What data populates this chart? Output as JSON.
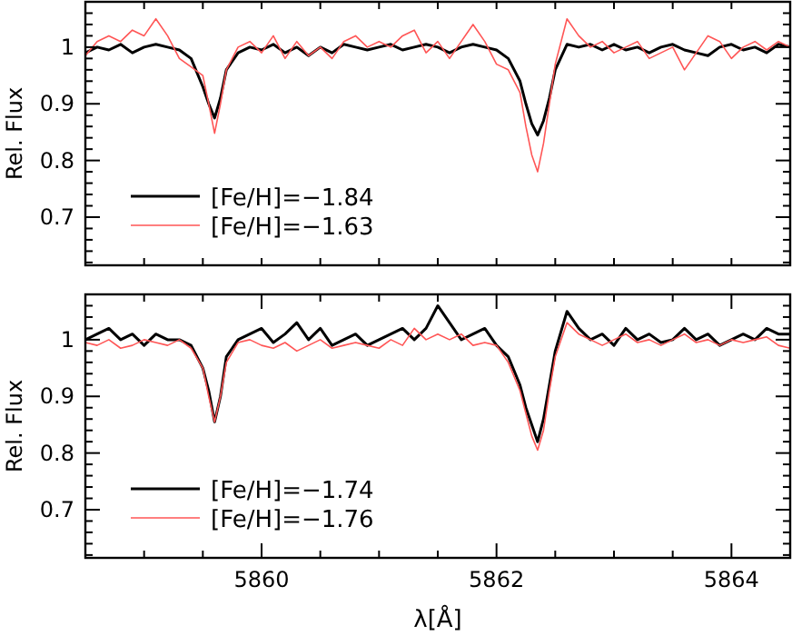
{
  "chart_data": [
    {
      "type": "line",
      "ylabel": "Rel. Flux",
      "xlim": [
        5858.5,
        5864.5
      ],
      "ylim": [
        0.615,
        1.08
      ],
      "legend": "bottom left",
      "tick_labels": "y",
      "line_style": "solid",
      "xticks": [
        {
          "value": 5858.5,
          "label": null
        },
        {
          "value": 5859,
          "label": null
        },
        {
          "value": 5859.5,
          "label": null
        },
        {
          "value": 5860,
          "label": null
        },
        {
          "value": 5860.5,
          "label": null
        },
        {
          "value": 5861,
          "label": null
        },
        {
          "value": 5861.5,
          "label": null
        },
        {
          "value": 5862,
          "label": null
        },
        {
          "value": 5862.5,
          "label": null
        },
        {
          "value": 5863,
          "label": null
        },
        {
          "value": 5863.5,
          "label": null
        },
        {
          "value": 5864,
          "label": null
        }
      ],
      "yticks": [
        {
          "value": 0.62,
          "label": null
        },
        {
          "value": 0.64,
          "label": null
        },
        {
          "value": 0.66,
          "label": null
        },
        {
          "value": 0.68,
          "label": null
        },
        0.7,
        {
          "value": 0.72,
          "label": null
        },
        {
          "value": 0.74,
          "label": null
        },
        {
          "value": 0.76,
          "label": null
        },
        {
          "value": 0.78,
          "label": null
        },
        0.8,
        {
          "value": 0.82,
          "label": null
        },
        {
          "value": 0.84,
          "label": null
        },
        {
          "value": 0.86,
          "label": null
        },
        {
          "value": 0.88,
          "label": null
        },
        0.9,
        {
          "value": 0.92,
          "label": null
        },
        {
          "value": 0.94,
          "label": null
        },
        {
          "value": 0.96,
          "label": null
        },
        {
          "value": 0.98,
          "label": null
        },
        1,
        {
          "value": 1.02,
          "label": null
        },
        {
          "value": 1.04,
          "label": null
        },
        {
          "value": 1.06,
          "label": null
        }
      ],
      "x": [
        5858.5,
        5858.6,
        5858.7,
        5858.8,
        5858.9,
        5859.0,
        5859.1,
        5859.2,
        5859.3,
        5859.4,
        5859.5,
        5859.55,
        5859.6,
        5859.65,
        5859.7,
        5859.8,
        5859.9,
        5860.0,
        5860.1,
        5860.2,
        5860.3,
        5860.4,
        5860.5,
        5860.6,
        5860.7,
        5860.8,
        5860.9,
        5861.0,
        5861.1,
        5861.2,
        5861.3,
        5861.4,
        5861.5,
        5861.6,
        5861.7,
        5861.8,
        5861.9,
        5862.0,
        5862.1,
        5862.2,
        5862.25,
        5862.3,
        5862.35,
        5862.4,
        5862.45,
        5862.5,
        5862.6,
        5862.7,
        5862.8,
        5862.9,
        5863.0,
        5863.1,
        5863.2,
        5863.3,
        5863.4,
        5863.5,
        5863.6,
        5863.7,
        5863.8,
        5863.9,
        5864.0,
        5864.1,
        5864.2,
        5864.3,
        5864.4,
        5864.5
      ],
      "series": [
        {
          "name": "[Fe/H]=−1.84",
          "color": "#000000",
          "values": [
            0.99,
            1.0,
            0.995,
            1.005,
            0.99,
            1.0,
            1.005,
            1.0,
            0.995,
            0.98,
            0.93,
            0.9,
            0.875,
            0.91,
            0.96,
            0.99,
            1.0,
            0.995,
            1.005,
            0.99,
            1.0,
            0.985,
            1.0,
            0.99,
            1.005,
            1.0,
            0.995,
            1.0,
            1.005,
            0.995,
            1.0,
            1.005,
            1.0,
            0.99,
            1.0,
            1.005,
            1.0,
            0.995,
            0.98,
            0.94,
            0.9,
            0.865,
            0.845,
            0.87,
            0.91,
            0.96,
            1.005,
            1.0,
            1.005,
            0.995,
            1.005,
            0.995,
            1.0,
            0.99,
            1.0,
            1.005,
            0.995,
            0.99,
            0.985,
            1.0,
            1.005,
            0.995,
            1.0,
            0.99,
            1.005,
            1.0
          ]
        },
        {
          "name": "[Fe/H]=−1.63",
          "color": "#ff5555",
          "values": [
            0.985,
            1.01,
            1.02,
            1.01,
            1.03,
            1.02,
            1.05,
            1.02,
            0.98,
            0.965,
            0.95,
            0.9,
            0.848,
            0.9,
            0.96,
            1.0,
            1.01,
            0.99,
            1.02,
            0.98,
            1.01,
            0.985,
            1.0,
            0.98,
            1.01,
            1.02,
            1.0,
            1.01,
            1.0,
            1.02,
            1.03,
            0.99,
            1.01,
            0.98,
            1.01,
            1.04,
            1.01,
            0.97,
            0.96,
            0.92,
            0.86,
            0.81,
            0.78,
            0.83,
            0.9,
            0.97,
            1.05,
            1.02,
            1.0,
            1.01,
            0.99,
            1.0,
            1.01,
            0.98,
            0.99,
            1.0,
            0.96,
            0.99,
            1.02,
            1.01,
            0.98,
            1.0,
            1.01,
            0.995,
            1.01,
            1.0
          ]
        }
      ]
    },
    {
      "type": "line",
      "ylabel": "Rel. Flux",
      "xlabel": "λ[Å]",
      "xlim": [
        5858.5,
        5864.5
      ],
      "ylim": [
        0.615,
        1.08
      ],
      "legend": "bottom left",
      "line_style": "solid",
      "xticks": [
        {
          "value": 5858.5,
          "label": null
        },
        {
          "value": 5859,
          "label": null
        },
        {
          "value": 5859.5,
          "label": null
        },
        5860,
        {
          "value": 5860.5,
          "label": null
        },
        {
          "value": 5861,
          "label": null
        },
        {
          "value": 5861.5,
          "label": null
        },
        5862,
        {
          "value": 5862.5,
          "label": null
        },
        {
          "value": 5863,
          "label": null
        },
        {
          "value": 5863.5,
          "label": null
        },
        5864
      ],
      "yticks": [
        {
          "value": 0.62,
          "label": null
        },
        {
          "value": 0.64,
          "label": null
        },
        {
          "value": 0.66,
          "label": null
        },
        {
          "value": 0.68,
          "label": null
        },
        0.7,
        {
          "value": 0.72,
          "label": null
        },
        {
          "value": 0.74,
          "label": null
        },
        {
          "value": 0.76,
          "label": null
        },
        {
          "value": 0.78,
          "label": null
        },
        0.8,
        {
          "value": 0.82,
          "label": null
        },
        {
          "value": 0.84,
          "label": null
        },
        {
          "value": 0.86,
          "label": null
        },
        {
          "value": 0.88,
          "label": null
        },
        0.9,
        {
          "value": 0.92,
          "label": null
        },
        {
          "value": 0.94,
          "label": null
        },
        {
          "value": 0.96,
          "label": null
        },
        {
          "value": 0.98,
          "label": null
        },
        1,
        {
          "value": 1.02,
          "label": null
        },
        {
          "value": 1.04,
          "label": null
        },
        {
          "value": 1.06,
          "label": null
        }
      ],
      "x": [
        5858.5,
        5858.6,
        5858.7,
        5858.8,
        5858.9,
        5859.0,
        5859.1,
        5859.2,
        5859.3,
        5859.4,
        5859.5,
        5859.55,
        5859.6,
        5859.65,
        5859.7,
        5859.8,
        5859.9,
        5860.0,
        5860.1,
        5860.2,
        5860.3,
        5860.4,
        5860.5,
        5860.6,
        5860.7,
        5860.8,
        5860.9,
        5861.0,
        5861.1,
        5861.2,
        5861.3,
        5861.4,
        5861.5,
        5861.6,
        5861.7,
        5861.8,
        5861.9,
        5862.0,
        5862.1,
        5862.2,
        5862.25,
        5862.3,
        5862.35,
        5862.4,
        5862.45,
        5862.5,
        5862.6,
        5862.7,
        5862.8,
        5862.9,
        5863.0,
        5863.1,
        5863.2,
        5863.3,
        5863.4,
        5863.5,
        5863.6,
        5863.7,
        5863.8,
        5863.9,
        5864.0,
        5864.1,
        5864.2,
        5864.3,
        5864.4,
        5864.5
      ],
      "series": [
        {
          "name": "[Fe/H]=−1.74",
          "color": "#000000",
          "values": [
            1.0,
            1.01,
            1.02,
            1.0,
            1.01,
            0.99,
            1.01,
            1.0,
            1.0,
            0.99,
            0.95,
            0.91,
            0.855,
            0.9,
            0.97,
            1.0,
            1.01,
            1.02,
            0.995,
            1.01,
            1.03,
            1.0,
            1.02,
            0.99,
            1.0,
            1.01,
            0.99,
            1.0,
            1.01,
            1.02,
            1.0,
            1.02,
            1.06,
            1.03,
            1.0,
            1.01,
            1.02,
            0.99,
            0.97,
            0.92,
            0.88,
            0.85,
            0.82,
            0.86,
            0.92,
            0.98,
            1.05,
            1.02,
            1.0,
            1.01,
            0.99,
            1.02,
            1.0,
            1.01,
            0.995,
            1.0,
            1.02,
            1.0,
            1.01,
            0.99,
            1.0,
            1.01,
            1.0,
            1.02,
            1.01,
            1.01
          ]
        },
        {
          "name": "[Fe/H]=−1.76",
          "color": "#ff5555",
          "values": [
            0.995,
            0.99,
            1.0,
            0.985,
            0.99,
            1.0,
            0.995,
            0.99,
            1.0,
            0.985,
            0.95,
            0.9,
            0.855,
            0.9,
            0.96,
            0.995,
            1.0,
            0.99,
            0.985,
            0.995,
            0.98,
            0.99,
            1.0,
            0.985,
            0.99,
            0.995,
            0.99,
            0.985,
            1.0,
            0.99,
            1.02,
            1.0,
            1.01,
            1.0,
            1.01,
            0.99,
            0.995,
            0.99,
            0.96,
            0.91,
            0.87,
            0.83,
            0.805,
            0.84,
            0.91,
            0.97,
            1.03,
            1.01,
            1.0,
            0.99,
            1.0,
            1.01,
            0.995,
            1.0,
            0.99,
            1.0,
            1.01,
            0.995,
            1.0,
            0.99,
            1.0,
            0.995,
            1.0,
            1.005,
            0.99,
            0.985
          ]
        }
      ]
    }
  ]
}
